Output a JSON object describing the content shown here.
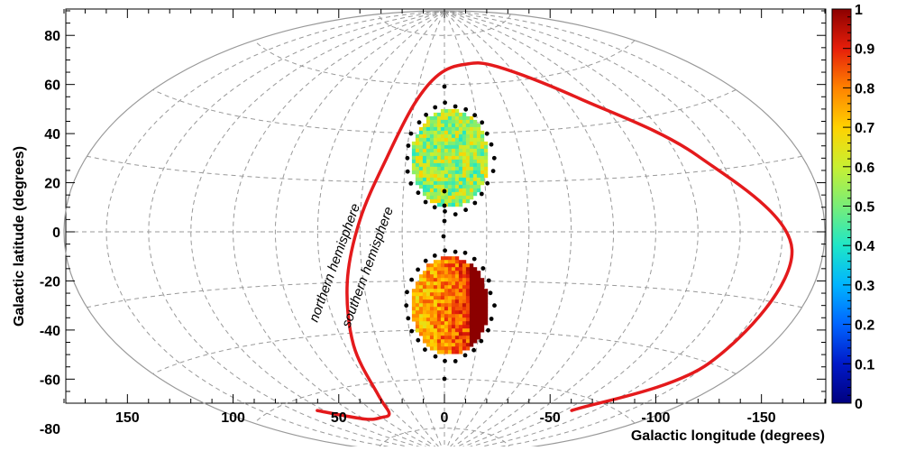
{
  "chart_data": {
    "type": "heatmap",
    "projection": "aitoff",
    "title": "",
    "xlabel": "Galactic longitude (degrees)",
    "ylabel": "Galactic latitude (degrees)",
    "xlim": [
      180,
      -180
    ],
    "ylim": [
      -90,
      90
    ],
    "x_reversed": true,
    "grid": true,
    "x_ticks": [
      "150",
      "100",
      "50",
      "0",
      "-50",
      "-100",
      "-150"
    ],
    "y_ticks": [
      "80",
      "60",
      "40",
      "20",
      "0",
      "-20",
      "-40",
      "-60",
      "-80"
    ],
    "colorbar": {
      "min": 0,
      "max": 1,
      "ticks": [
        "0",
        "0.1",
        "0.2",
        "0.3",
        "0.4",
        "0.5",
        "0.6",
        "0.7",
        "0.8",
        "0.9",
        "1"
      ],
      "colormap": "rainbow (blue-cyan-green-yellow-orange-red-darkred)"
    },
    "regions": [
      {
        "name": "northern",
        "center_lon": -3,
        "center_lat": 30,
        "radius_deg": 20,
        "value_mean": 0.55
      },
      {
        "name": "southern",
        "center_lon": -3,
        "center_lat": -30,
        "radius_deg": 20,
        "value_mean": 0.8,
        "value_gradient_to": 1.0
      }
    ],
    "curve": {
      "color": "#e41a1c",
      "points": [
        [
          125,
          -65
        ],
        [
          100,
          -72
        ],
        [
          80,
          -73
        ],
        [
          66,
          -72
        ],
        [
          60,
          -65
        ],
        [
          55,
          -45
        ],
        [
          48,
          -20
        ],
        [
          40,
          5
        ],
        [
          30,
          30
        ],
        [
          20,
          52
        ],
        [
          5,
          64
        ],
        [
          -20,
          68
        ],
        [
          -50,
          66
        ],
        [
          -90,
          50
        ],
        [
          -130,
          25
        ],
        [
          -165,
          -5
        ],
        [
          -160,
          -40
        ],
        [
          -125,
          -65
        ]
      ]
    },
    "annotations": [
      "northern hemisphere",
      "southern hemisphere"
    ],
    "colors": {
      "curve": "#e41a1c",
      "grid": "#999999",
      "outline": "#999999",
      "markers": "#000000"
    }
  }
}
